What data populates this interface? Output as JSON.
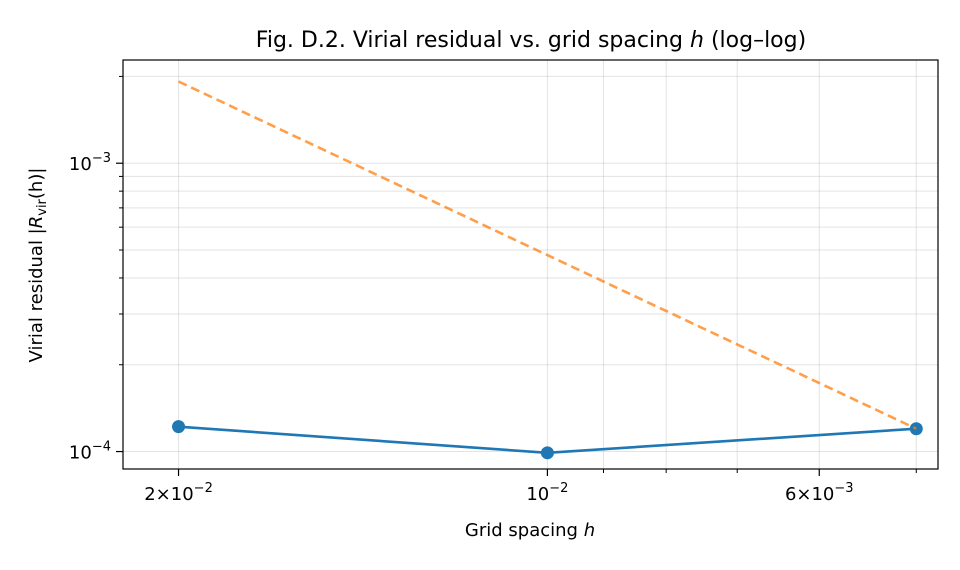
{
  "chart_data": {
    "type": "line",
    "title": "Fig. D.2. Virial residual vs. grid spacing",
    "title_var": "h",
    "title_suffix": "(log–log)",
    "xlabel": "Grid spacing",
    "xlabel_var": "h",
    "ylabel_prefix": "Virial residual |",
    "ylabel_var": "R",
    "ylabel_sub": "vir",
    "ylabel_suffix": "(h)|",
    "x_scale": "log",
    "y_scale": "log",
    "x_inverted": true,
    "xlim": [
      0.0222,
      0.0048
    ],
    "ylim": [
      8.7e-05,
      0.00228
    ],
    "grid": true,
    "legend": "none",
    "x_major_ticks": [
      {
        "value": 0.02,
        "mantissa": "2",
        "exp": "−2"
      },
      {
        "value": 0.01,
        "mantissa": "",
        "exp": "−2"
      },
      {
        "value": 0.006,
        "mantissa": "6",
        "exp": "−3"
      }
    ],
    "x_minor_ticks": [
      0.009,
      0.008,
      0.007,
      0.005
    ],
    "y_major_ticks": [
      {
        "value": 0.001,
        "exp": "−3"
      },
      {
        "value": 0.0001,
        "exp": "−4"
      }
    ],
    "y_minor_ticks": [
      0.0002,
      0.0003,
      0.0004,
      0.0005,
      0.0006,
      0.0007,
      0.0008,
      0.0009,
      0.002
    ],
    "series": [
      {
        "style": "solid-markers",
        "color": "#1f77b4",
        "x": [
          0.02,
          0.01,
          0.005
        ],
        "y": [
          0.000122,
          9.9e-05,
          0.00012
        ]
      },
      {
        "style": "dashed",
        "color": "#ff7f0e",
        "x": [
          0.02,
          0.005
        ],
        "y": [
          0.00192,
          0.00012
        ]
      }
    ]
  }
}
